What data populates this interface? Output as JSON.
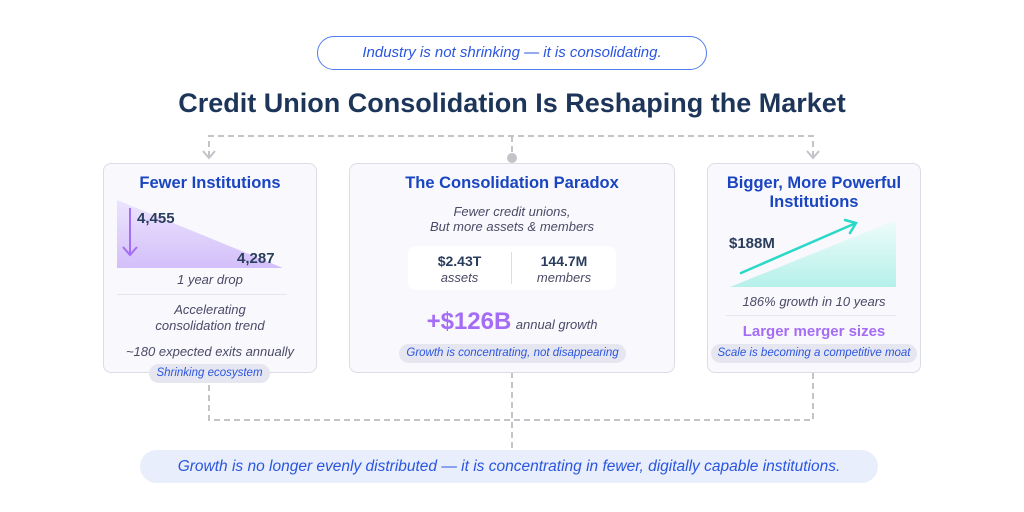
{
  "header": {
    "tagline": "Industry is not shrinking — it is consolidating.",
    "title": "Credit Union Consolidation Is Reshaping the Market"
  },
  "cards": {
    "left": {
      "title": "Fewer Institutions",
      "start_value": "4,455",
      "end_value": "4,287",
      "caption": "1 year drop",
      "trend_line1": "Accelerating",
      "trend_line2": "consolidation trend",
      "exits": "~180 expected exits annually",
      "pill": "Shrinking ecosystem"
    },
    "center": {
      "title": "The Consolidation Paradox",
      "subtitle_line1": "Fewer credit unions,",
      "subtitle_line2": "But more assets & members",
      "assets_value": "$2.43T",
      "assets_label": "assets",
      "members_value": "144.7M",
      "members_label": "members",
      "growth_value": "+$126B",
      "growth_label": "annual growth",
      "pill": "Growth is concentrating, not disappearing"
    },
    "right": {
      "title_line1": "Bigger, More Powerful",
      "title_line2": "Institutions",
      "value": "$188M",
      "caption": "186% growth in 10 years",
      "highlight": "Larger merger sizes",
      "pill": "Scale is becoming a competitive moat"
    }
  },
  "footer": {
    "conclusion": "Growth is no longer evenly distributed — it is concentrating in fewer, digitally capable institutions."
  },
  "colors": {
    "navy": "#1c3558",
    "blue": "#2a55e0",
    "purple": "#a56cf5",
    "teal": "#2ad8c8"
  }
}
